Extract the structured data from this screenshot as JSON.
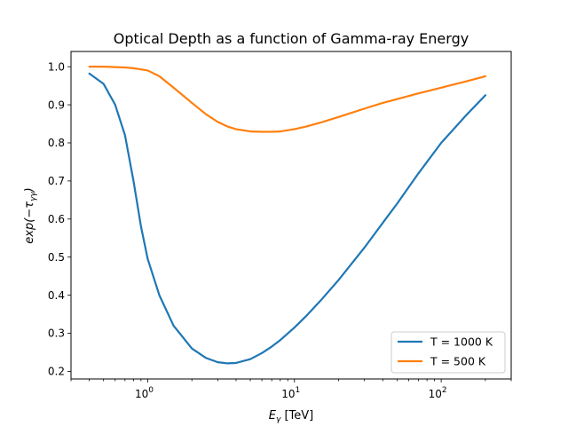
{
  "chart_data": {
    "type": "line",
    "title": "Optical Depth as a function of Gamma-ray Energy",
    "xlabel_main": "E",
    "xlabel_sub": "γ",
    "xlabel_unit": " [TeV]",
    "ylabel_text": "exp(−τ",
    "ylabel_sub": "γγ",
    "ylabel_close": ")",
    "xscale": "log",
    "xlim": [
      0.3,
      300
    ],
    "ylim": [
      0.18,
      1.04
    ],
    "x_major_ticks": [
      {
        "value": 1,
        "base": "10",
        "exp": "0"
      },
      {
        "value": 10,
        "base": "10",
        "exp": "1"
      },
      {
        "value": 100,
        "base": "10",
        "exp": "2"
      }
    ],
    "yticks": [
      0.2,
      0.3,
      0.4,
      0.5,
      0.6,
      0.7,
      0.8,
      0.9,
      1.0
    ],
    "ytick_labels": [
      "0.2",
      "0.3",
      "0.4",
      "0.5",
      "0.6",
      "0.7",
      "0.8",
      "0.9",
      "1.0"
    ],
    "grid": false,
    "legend_position": "lower-right",
    "series": [
      {
        "name": "T = 1000 K",
        "color": "#1f77b4",
        "x": [
          0.4,
          0.5,
          0.6,
          0.7,
          0.8,
          0.9,
          1.0,
          1.2,
          1.5,
          2.0,
          2.5,
          3.0,
          3.5,
          4.0,
          5.0,
          6.0,
          7.0,
          8.0,
          10,
          12,
          15,
          20,
          30,
          40,
          50,
          70,
          100,
          150,
          200
        ],
        "y": [
          0.982,
          0.955,
          0.9,
          0.82,
          0.7,
          0.58,
          0.495,
          0.4,
          0.32,
          0.26,
          0.235,
          0.224,
          0.221,
          0.222,
          0.232,
          0.248,
          0.265,
          0.282,
          0.315,
          0.345,
          0.385,
          0.44,
          0.525,
          0.59,
          0.64,
          0.72,
          0.8,
          0.875,
          0.925
        ]
      },
      {
        "name": "T = 500 K",
        "color": "#ff7f0e",
        "x": [
          0.4,
          0.5,
          0.6,
          0.7,
          0.8,
          0.9,
          1.0,
          1.2,
          1.5,
          2.0,
          2.5,
          3.0,
          3.5,
          4.0,
          5.0,
          6.0,
          7.0,
          8.0,
          10,
          12,
          15,
          20,
          30,
          40,
          50,
          70,
          100,
          150,
          200
        ],
        "y": [
          1.0,
          1.0,
          0.999,
          0.998,
          0.996,
          0.993,
          0.99,
          0.975,
          0.945,
          0.905,
          0.875,
          0.855,
          0.843,
          0.836,
          0.83,
          0.829,
          0.829,
          0.83,
          0.836,
          0.843,
          0.853,
          0.868,
          0.89,
          0.905,
          0.915,
          0.93,
          0.945,
          0.962,
          0.975
        ]
      }
    ]
  }
}
